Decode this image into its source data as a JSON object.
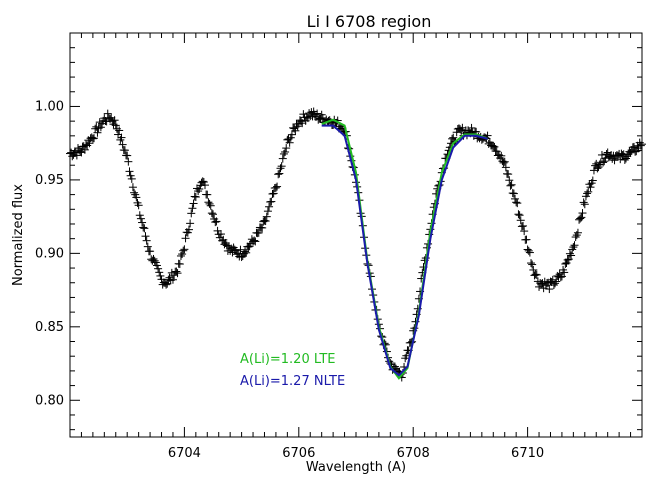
{
  "chart_data": {
    "type": "scatter",
    "title": "Li I 6708 region",
    "xlabel": "Wavelength (A)",
    "ylabel": "Normalized flux",
    "xlim": [
      6702,
      6712
    ],
    "ylim": [
      0.775,
      1.05
    ],
    "x_ticks_major": [
      6704,
      6706,
      6708,
      6710
    ],
    "x_ticks_minor_step": 0.2,
    "y_ticks_major": [
      0.8,
      0.85,
      0.9,
      0.95,
      1.0
    ],
    "y_tick_labels": [
      "0.80",
      "0.85",
      "0.90",
      "0.95",
      "1.00"
    ],
    "y_ticks_minor_step": 0.01,
    "grid": false,
    "colors": {
      "observed": "#000000",
      "lte": "#22bb22",
      "nlte": "#1a1aaa"
    },
    "observed": {
      "marker": "plus",
      "x": [
        6702.0,
        6702.2,
        6702.4,
        6702.6,
        6702.7,
        6702.8,
        6703.0,
        6703.2,
        6703.4,
        6703.6,
        6703.7,
        6703.8,
        6703.9,
        6704.0,
        6704.2,
        6704.3,
        6704.4,
        6704.6,
        6704.8,
        6705.0,
        6705.2,
        6705.4,
        6705.6,
        6705.8,
        6706.0,
        6706.2,
        6706.4,
        6706.6,
        6706.8,
        6707.0,
        6707.2,
        6707.4,
        6707.6,
        6707.7,
        6707.8,
        6708.0,
        6708.2,
        6708.4,
        6708.6,
        6708.8,
        6709.0,
        6709.2,
        6709.4,
        6709.6,
        6709.8,
        6710.0,
        6710.1,
        6710.2,
        6710.4,
        6710.6,
        6710.8,
        6711.0,
        6711.2,
        6711.4,
        6711.6,
        6711.8,
        6712.0
      ],
      "y": [
        0.968,
        0.97,
        0.98,
        0.991,
        0.993,
        0.988,
        0.965,
        0.93,
        0.9,
        0.882,
        0.88,
        0.885,
        0.89,
        0.905,
        0.94,
        0.951,
        0.94,
        0.915,
        0.902,
        0.9,
        0.908,
        0.92,
        0.945,
        0.975,
        0.99,
        0.995,
        0.992,
        0.99,
        0.985,
        0.95,
        0.895,
        0.85,
        0.825,
        0.82,
        0.818,
        0.845,
        0.895,
        0.94,
        0.97,
        0.983,
        0.983,
        0.98,
        0.975,
        0.96,
        0.935,
        0.905,
        0.89,
        0.88,
        0.878,
        0.885,
        0.905,
        0.935,
        0.96,
        0.968,
        0.965,
        0.968,
        0.975
      ]
    },
    "series": [
      {
        "name": "A(Li)=1.20 LTE",
        "color": "#22bb22",
        "x": [
          6706.4,
          6706.6,
          6706.8,
          6707.0,
          6707.2,
          6707.4,
          6707.6,
          6707.75,
          6707.9,
          6708.1,
          6708.3,
          6708.5,
          6708.7,
          6708.9,
          6709.1,
          6709.3
        ],
        "y": [
          0.988,
          0.991,
          0.987,
          0.955,
          0.895,
          0.85,
          0.823,
          0.815,
          0.822,
          0.86,
          0.915,
          0.955,
          0.975,
          0.981,
          0.981,
          0.978
        ]
      },
      {
        "name": "A(Li)=1.27 NLTE",
        "color": "#1a1aaa",
        "x": [
          6706.4,
          6706.6,
          6706.8,
          6707.0,
          6707.2,
          6707.4,
          6707.6,
          6707.75,
          6707.9,
          6708.1,
          6708.3,
          6708.5,
          6708.7,
          6708.9,
          6709.1,
          6709.3
        ],
        "y": [
          0.987,
          0.987,
          0.98,
          0.95,
          0.893,
          0.848,
          0.822,
          0.817,
          0.823,
          0.858,
          0.91,
          0.95,
          0.972,
          0.98,
          0.98,
          0.978
        ]
      }
    ],
    "annotations": [
      {
        "text": "A(Li)=1.20 LTE",
        "color": "#22bb22"
      },
      {
        "text": "A(Li)=1.27 NLTE",
        "color": "#1a1aaa"
      }
    ]
  }
}
